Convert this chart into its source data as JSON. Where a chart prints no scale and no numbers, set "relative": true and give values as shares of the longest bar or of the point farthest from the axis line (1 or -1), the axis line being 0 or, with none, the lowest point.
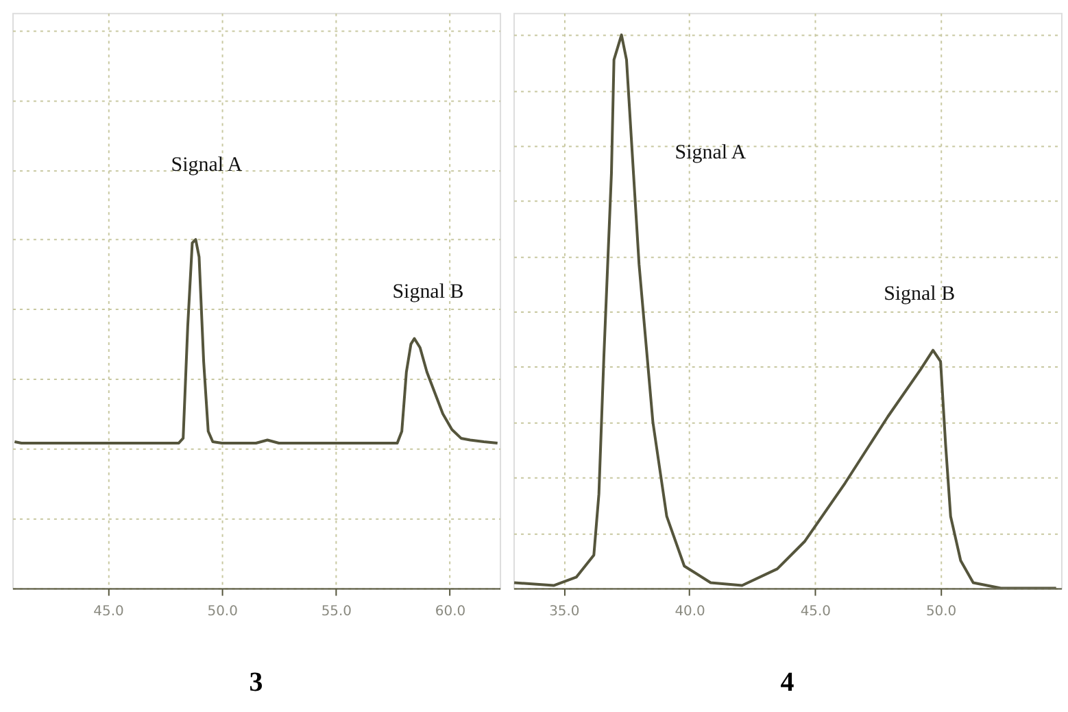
{
  "chart_data": [
    {
      "type": "line",
      "title": "3",
      "relative": true,
      "grid": true,
      "xlim": [
        40.8,
        62.2
      ],
      "xticks": [
        {
          "value": 45,
          "label": "45.0"
        },
        {
          "value": 50,
          "label": "50.0"
        },
        {
          "value": 55,
          "label": "55.0"
        },
        {
          "value": 60,
          "label": "60.0"
        }
      ],
      "annotations": [
        "Signal  A",
        "Signal B"
      ],
      "series": [
        {
          "color": "#55553c",
          "x": [
            40.9,
            41.2,
            48.1,
            48.3,
            48.5,
            48.7,
            48.85,
            49.0,
            49.2,
            49.4,
            49.6,
            50.0,
            51.5,
            52.0,
            52.5,
            57.7,
            57.9,
            58.1,
            58.3,
            58.45,
            58.7,
            59.0,
            59.35,
            59.7,
            60.1,
            60.5,
            60.9,
            61.5,
            62.1
          ],
          "values": [
            0.42,
            0.416,
            0.416,
            0.43,
            0.75,
            0.99,
            1.0,
            0.95,
            0.65,
            0.45,
            0.42,
            0.416,
            0.416,
            0.425,
            0.416,
            0.416,
            0.45,
            0.62,
            0.7,
            0.716,
            0.69,
            0.62,
            0.56,
            0.5,
            0.455,
            0.43,
            0.425,
            0.42,
            0.416
          ]
        }
      ]
    },
    {
      "type": "line",
      "title": "4",
      "relative": true,
      "grid": true,
      "xlim": [
        33.0,
        54.8
      ],
      "xticks": [
        {
          "value": 35,
          "label": "35.0"
        },
        {
          "value": 40,
          "label": "40.0"
        },
        {
          "value": 45,
          "label": "45.0"
        },
        {
          "value": 50,
          "label": "50.0"
        }
      ],
      "annotations": [
        "Signal  A",
        "Signal B"
      ],
      "series": [
        {
          "color": "#55553c",
          "x": [
            33.03,
            34.6,
            35.5,
            36.2,
            36.4,
            36.6,
            36.9,
            37.0,
            37.3,
            37.5,
            38.0,
            38.55,
            39.1,
            39.8,
            40.85,
            42.1,
            43.5,
            44.6,
            46.2,
            47.9,
            49.2,
            49.7,
            50.0,
            50.2,
            50.4,
            50.8,
            51.3,
            52.4,
            54.6
          ],
          "values": [
            0.01,
            0.005,
            0.02,
            0.06,
            0.17,
            0.42,
            0.75,
            0.955,
            1.0,
            0.955,
            0.585,
            0.3,
            0.13,
            0.04,
            0.01,
            0.005,
            0.035,
            0.085,
            0.19,
            0.31,
            0.395,
            0.43,
            0.41,
            0.26,
            0.13,
            0.05,
            0.01,
            0.0,
            0.0
          ]
        }
      ]
    }
  ]
}
